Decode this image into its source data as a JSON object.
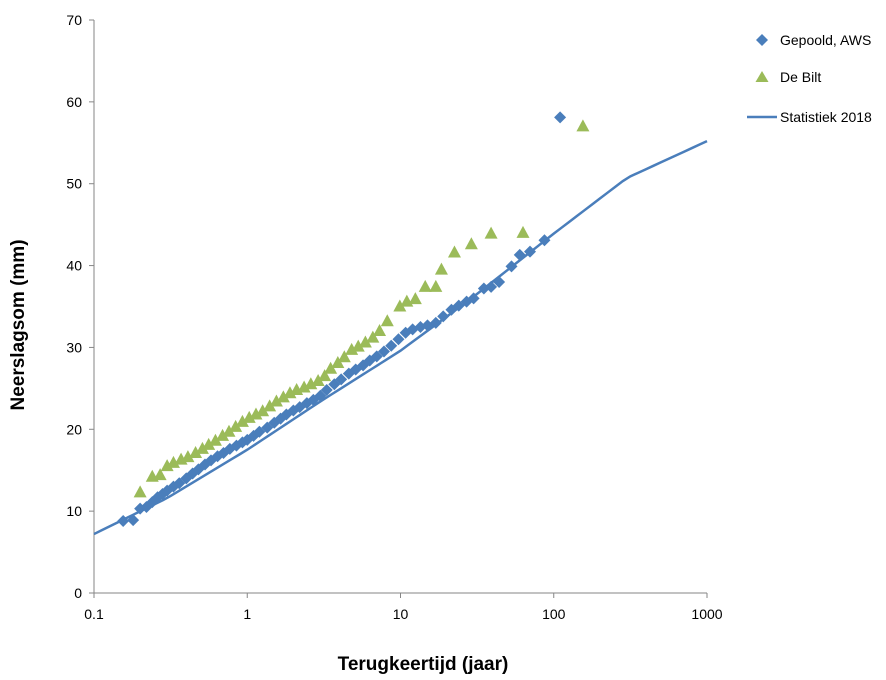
{
  "chart_data": {
    "type": "scatter",
    "title": "",
    "xlabel": "Terugkeertijd (jaar)",
    "ylabel": "Neerslagsom (mm)",
    "x_scale": "log",
    "xlim": [
      0.1,
      1000
    ],
    "ylim": [
      0,
      70
    ],
    "x_ticks": [
      0.1,
      1,
      10,
      100,
      1000
    ],
    "x_tick_labels": [
      "0.1",
      "1",
      "10",
      "100",
      "1000"
    ],
    "y_ticks": [
      0,
      10,
      20,
      30,
      40,
      50,
      60,
      70
    ],
    "y_tick_labels": [
      "0",
      "10",
      "20",
      "30",
      "40",
      "50",
      "60",
      "70"
    ],
    "grid": false,
    "legend_position": "right",
    "series": [
      {
        "name": "Gepoold, AWS",
        "marker": "diamond",
        "color": "#4a7ebb",
        "points": [
          [
            0.155,
            8.8
          ],
          [
            0.18,
            8.9
          ],
          [
            0.2,
            10.3
          ],
          [
            0.22,
            10.5
          ],
          [
            0.24,
            11.1
          ],
          [
            0.26,
            11.7
          ],
          [
            0.28,
            12.1
          ],
          [
            0.3,
            12.5
          ],
          [
            0.33,
            13.0
          ],
          [
            0.36,
            13.4
          ],
          [
            0.4,
            14.0
          ],
          [
            0.44,
            14.6
          ],
          [
            0.48,
            15.1
          ],
          [
            0.53,
            15.7
          ],
          [
            0.58,
            16.2
          ],
          [
            0.64,
            16.7
          ],
          [
            0.7,
            17.1
          ],
          [
            0.77,
            17.6
          ],
          [
            0.85,
            18.0
          ],
          [
            0.93,
            18.4
          ],
          [
            1.0,
            18.7
          ],
          [
            1.1,
            19.2
          ],
          [
            1.2,
            19.7
          ],
          [
            1.35,
            20.2
          ],
          [
            1.5,
            20.8
          ],
          [
            1.65,
            21.3
          ],
          [
            1.8,
            21.8
          ],
          [
            2.0,
            22.3
          ],
          [
            2.2,
            22.7
          ],
          [
            2.45,
            23.2
          ],
          [
            2.7,
            23.6
          ],
          [
            3.0,
            24.1
          ],
          [
            3.3,
            24.8
          ],
          [
            3.7,
            25.5
          ],
          [
            4.1,
            26.1
          ],
          [
            4.6,
            26.8
          ],
          [
            5.1,
            27.3
          ],
          [
            5.7,
            27.8
          ],
          [
            6.3,
            28.4
          ],
          [
            7.0,
            28.9
          ],
          [
            7.8,
            29.5
          ],
          [
            8.7,
            30.2
          ],
          [
            9.7,
            31.0
          ],
          [
            10.8,
            31.8
          ],
          [
            12.0,
            32.2
          ],
          [
            13.5,
            32.5
          ],
          [
            15.0,
            32.7
          ],
          [
            17.0,
            33.0
          ],
          [
            19.0,
            33.8
          ],
          [
            21.5,
            34.6
          ],
          [
            24.0,
            35.1
          ],
          [
            27.0,
            35.6
          ],
          [
            30.0,
            36.0
          ],
          [
            35.0,
            37.2
          ],
          [
            39.0,
            37.4
          ],
          [
            44.0,
            38.0
          ],
          [
            53.0,
            39.9
          ],
          [
            60.0,
            41.3
          ],
          [
            70.0,
            41.7
          ],
          [
            87.0,
            43.1
          ],
          [
            110.0,
            58.1
          ]
        ]
      },
      {
        "name": "De Bilt",
        "marker": "triangle",
        "color": "#9bbb59",
        "points": [
          [
            0.2,
            12.3
          ],
          [
            0.24,
            14.2
          ],
          [
            0.27,
            14.4
          ],
          [
            0.3,
            15.5
          ],
          [
            0.33,
            15.9
          ],
          [
            0.37,
            16.3
          ],
          [
            0.41,
            16.6
          ],
          [
            0.46,
            17.1
          ],
          [
            0.51,
            17.6
          ],
          [
            0.56,
            18.1
          ],
          [
            0.62,
            18.6
          ],
          [
            0.69,
            19.2
          ],
          [
            0.76,
            19.7
          ],
          [
            0.84,
            20.3
          ],
          [
            0.93,
            20.9
          ],
          [
            1.03,
            21.4
          ],
          [
            1.14,
            21.8
          ],
          [
            1.26,
            22.2
          ],
          [
            1.4,
            22.8
          ],
          [
            1.55,
            23.4
          ],
          [
            1.72,
            23.9
          ],
          [
            1.9,
            24.4
          ],
          [
            2.1,
            24.8
          ],
          [
            2.35,
            25.1
          ],
          [
            2.6,
            25.5
          ],
          [
            2.9,
            25.9
          ],
          [
            3.2,
            26.5
          ],
          [
            3.5,
            27.4
          ],
          [
            3.9,
            28.1
          ],
          [
            4.3,
            28.8
          ],
          [
            4.8,
            29.7
          ],
          [
            5.3,
            30.1
          ],
          [
            5.9,
            30.6
          ],
          [
            6.6,
            31.2
          ],
          [
            7.3,
            32.0
          ],
          [
            8.2,
            33.2
          ],
          [
            9.9,
            35.0
          ],
          [
            11.0,
            35.6
          ],
          [
            12.5,
            35.9
          ],
          [
            14.5,
            37.4
          ],
          [
            17.0,
            37.4
          ],
          [
            18.5,
            39.5
          ],
          [
            22.5,
            41.6
          ],
          [
            29.0,
            42.6
          ],
          [
            39.0,
            43.9
          ],
          [
            63.0,
            44.0
          ],
          [
            155.0,
            57.0
          ]
        ]
      },
      {
        "name": "Statistiek 2018",
        "marker": "line",
        "color": "#4a7ebb",
        "points": [
          [
            0.1,
            7.2
          ],
          [
            0.3,
            11.6
          ],
          [
            1.0,
            17.5
          ],
          [
            3.0,
            23.4
          ],
          [
            10.0,
            29.6
          ],
          [
            30.0,
            36.2
          ],
          [
            100.0,
            43.9
          ],
          [
            300.0,
            50.7
          ],
          [
            1000.0,
            55.2
          ]
        ]
      }
    ]
  }
}
